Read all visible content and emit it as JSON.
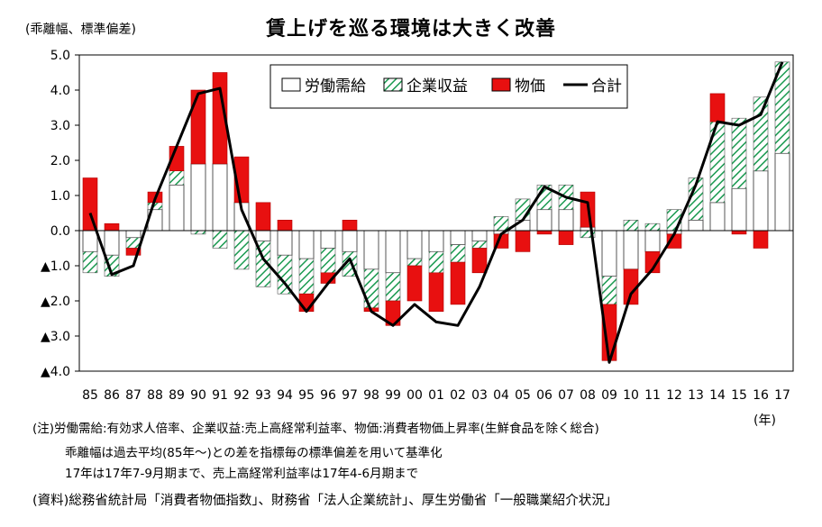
{
  "chart_data": {
    "type": "bar",
    "title": "賃上げを巡る環境は大きく改善",
    "ylabel": "(乖離幅、標準偏差)",
    "xunit": "(年)",
    "ylim": [
      -4.0,
      5.0
    ],
    "yticks": [
      {
        "value": 5,
        "label": "5.0"
      },
      {
        "value": 4,
        "label": "4.0"
      },
      {
        "value": 3,
        "label": "3.0"
      },
      {
        "value": 2,
        "label": "2.0"
      },
      {
        "value": 1,
        "label": "1.0"
      },
      {
        "value": 0,
        "label": "0.0"
      },
      {
        "value": -1,
        "label": "▲1.0"
      },
      {
        "value": -2,
        "label": "▲2.0"
      },
      {
        "value": -3,
        "label": "▲3.0"
      },
      {
        "value": -4,
        "label": "▲4.0"
      }
    ],
    "categories": [
      "85",
      "86",
      "87",
      "88",
      "89",
      "90",
      "91",
      "92",
      "93",
      "94",
      "95",
      "96",
      "97",
      "98",
      "99",
      "00",
      "01",
      "02",
      "03",
      "04",
      "05",
      "06",
      "07",
      "08",
      "09",
      "10",
      "11",
      "12",
      "13",
      "14",
      "15",
      "16",
      "17"
    ],
    "legend_position": "top-center",
    "series": [
      {
        "name": "労働需給",
        "kind": "bar",
        "color": "#ffffff",
        "values": [
          -0.6,
          -0.7,
          -0.2,
          0.6,
          1.3,
          1.9,
          1.9,
          0.8,
          -0.3,
          -0.7,
          -0.8,
          -0.5,
          -0.6,
          -1.1,
          -1.2,
          -0.8,
          -0.6,
          -0.4,
          -0.3,
          -0.1,
          0.3,
          0.6,
          0.6,
          0.1,
          -1.3,
          -1.1,
          -0.6,
          -0.1,
          0.3,
          0.8,
          1.2,
          1.7,
          2.2
        ]
      },
      {
        "name": "企業収益",
        "kind": "bar",
        "color": "#1a9a50",
        "values": [
          -0.6,
          -0.6,
          -0.3,
          0.2,
          0.4,
          -0.1,
          -0.5,
          -1.1,
          -1.3,
          -1.1,
          -1.0,
          -0.7,
          -0.7,
          -1.1,
          -0.8,
          -0.2,
          -0.6,
          -0.5,
          -0.2,
          0.4,
          0.6,
          0.7,
          0.7,
          -0.2,
          -0.8,
          0.3,
          0.2,
          0.6,
          1.2,
          2.3,
          2.0,
          2.1,
          2.6
        ]
      },
      {
        "name": "物価",
        "kind": "bar",
        "color": "#e81010",
        "values": [
          1.5,
          0.2,
          -0.2,
          0.3,
          0.7,
          2.1,
          2.6,
          1.3,
          0.8,
          0.3,
          -0.5,
          -0.3,
          0.3,
          -0.1,
          -0.7,
          -1.0,
          -1.1,
          -1.2,
          -0.7,
          -0.4,
          -0.6,
          -0.1,
          -0.4,
          1.0,
          -1.6,
          -1.0,
          -0.6,
          -0.4,
          0.0,
          0.8,
          -0.1,
          -0.5,
          0.0
        ]
      },
      {
        "name": "合計",
        "kind": "line",
        "color": "#000000",
        "values": [
          0.5,
          -1.25,
          -1.0,
          0.9,
          2.4,
          3.9,
          4.05,
          0.6,
          -0.8,
          -1.5,
          -2.3,
          -1.5,
          -0.8,
          -2.3,
          -2.7,
          -2.1,
          -2.6,
          -2.7,
          -1.6,
          -0.1,
          0.3,
          1.25,
          0.95,
          0.8,
          -3.75,
          -1.8,
          -1.1,
          -0.1,
          1.3,
          3.1,
          3.0,
          3.3,
          4.8
        ]
      }
    ]
  },
  "notes": {
    "line1": "(注)労働需給:有効求人倍率、企業収益:売上高経常利益率、物価:消費者物価上昇率(生鮮食品を除く総合)",
    "line2": "乖離幅は過去平均(85年～)との差を指標毎の標準偏差を用いて基準化",
    "line3": "17年は17年7-9月期まで、売上高経常利益率は17年4-6月期まで"
  },
  "source": "(資料)総務省統計局「消費者物価指数」、財務省「法人企業統計」、厚生労働省「一般職業紹介状況」"
}
